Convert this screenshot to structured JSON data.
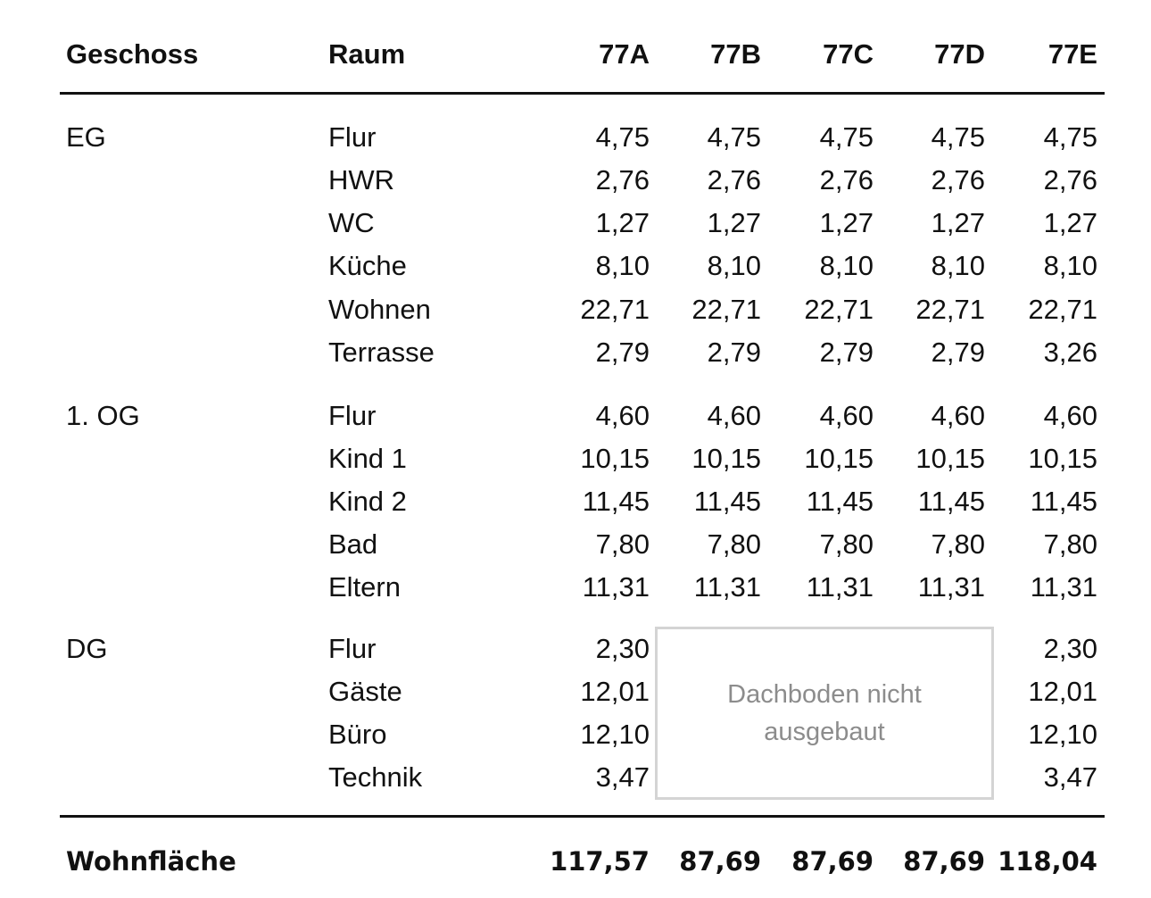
{
  "headers": {
    "geschoss": "Geschoss",
    "raum": "Raum",
    "cols": [
      "77A",
      "77B",
      "77C",
      "77D",
      "77E"
    ]
  },
  "floors": [
    {
      "label": "EG"
    },
    {
      "label": "1. OG"
    },
    {
      "label": "DG"
    }
  ],
  "rows": [
    {
      "raum": "Flur",
      "values": [
        "4,75",
        "4,75",
        "4,75",
        "4,75",
        "4,75"
      ]
    },
    {
      "raum": "HWR",
      "values": [
        "2,76",
        "2,76",
        "2,76",
        "2,76",
        "2,76"
      ]
    },
    {
      "raum": "WC",
      "values": [
        "1,27",
        "1,27",
        "1,27",
        "1,27",
        "1,27"
      ]
    },
    {
      "raum": "Küche",
      "values": [
        "8,10",
        "8,10",
        "8,10",
        "8,10",
        "8,10"
      ]
    },
    {
      "raum": "Wohnen",
      "values": [
        "22,71",
        "22,71",
        "22,71",
        "22,71",
        "22,71"
      ]
    },
    {
      "raum": "Terrasse",
      "values": [
        "2,79",
        "2,79",
        "2,79",
        "2,79",
        "3,26"
      ]
    },
    {
      "raum": "Flur",
      "values": [
        "4,60",
        "4,60",
        "4,60",
        "4,60",
        "4,60"
      ]
    },
    {
      "raum": "Kind 1",
      "values": [
        "10,15",
        "10,15",
        "10,15",
        "10,15",
        "10,15"
      ]
    },
    {
      "raum": "Kind 2",
      "values": [
        "11,45",
        "11,45",
        "11,45",
        "11,45",
        "11,45"
      ]
    },
    {
      "raum": "Bad",
      "values": [
        "7,80",
        "7,80",
        "7,80",
        "7,80",
        "7,80"
      ]
    },
    {
      "raum": "Eltern",
      "values": [
        "11,31",
        "11,31",
        "11,31",
        "11,31",
        "11,31"
      ]
    },
    {
      "raum": "Flur",
      "values": [
        "2,30",
        "",
        "",
        "",
        "2,30"
      ]
    },
    {
      "raum": "Gäste",
      "values": [
        "12,01",
        "",
        "",
        "",
        "12,01"
      ]
    },
    {
      "raum": "Büro",
      "values": [
        "12,10",
        "",
        "",
        "",
        "12,10"
      ]
    },
    {
      "raum": "Technik",
      "values": [
        "3,47",
        "",
        "",
        "",
        "3,47"
      ]
    }
  ],
  "dg_note": "Dachboden nicht ausgebaut",
  "total": {
    "label": "Wohnfläche",
    "values": [
      "117,57",
      "87,69",
      "87,69",
      "87,69",
      "118,04"
    ]
  }
}
